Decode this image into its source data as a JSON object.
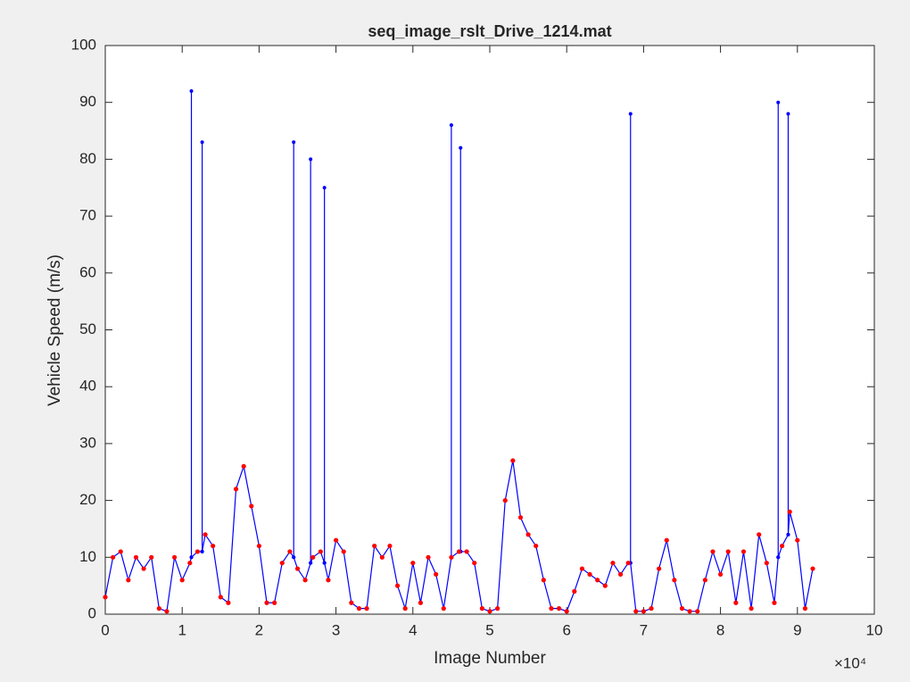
{
  "chart_data": {
    "type": "line",
    "title": "seq_image_rslt_Drive_1214.mat",
    "x_label": "Image Number",
    "y_label": "Vehicle Speed (m/s)",
    "x_exponent_label": "×10⁴",
    "xlim": [
      0,
      10
    ],
    "xticks": [
      0,
      1,
      2,
      3,
      4,
      5,
      6,
      7,
      8,
      9,
      10
    ],
    "ylim": [
      0,
      100
    ],
    "yticks": [
      0,
      10,
      20,
      30,
      40,
      50,
      60,
      70,
      80,
      90,
      100
    ],
    "series": [
      {
        "color": "#0000ff",
        "x": [
          0,
          0.1,
          0.2,
          0.3,
          0.4,
          0.5,
          0.6,
          0.7,
          0.8,
          0.9,
          1.0,
          1.1,
          1.12,
          1.12,
          1.12,
          1.2,
          1.26,
          1.26,
          1.26,
          1.3,
          1.4,
          1.5,
          1.6,
          1.7,
          1.8,
          1.9,
          2.0,
          2.1,
          2.2,
          2.3,
          2.4,
          2.45,
          2.45,
          2.45,
          2.5,
          2.6,
          2.67,
          2.67,
          2.67,
          2.7,
          2.8,
          2.85,
          2.85,
          2.85,
          2.9,
          3.0,
          3.1,
          3.2,
          3.3,
          3.4,
          3.5,
          3.6,
          3.7,
          3.8,
          3.9,
          4.0,
          4.1,
          4.2,
          4.3,
          4.4,
          4.5,
          4.5,
          4.5,
          4.6,
          4.62,
          4.62,
          4.62,
          4.7,
          4.8,
          4.9,
          5.0,
          5.1,
          5.2,
          5.3,
          5.4,
          5.5,
          5.6,
          5.7,
          5.8,
          5.9,
          6.0,
          6.1,
          6.2,
          6.3,
          6.4,
          6.5,
          6.6,
          6.7,
          6.8,
          6.83,
          6.83,
          6.83,
          6.9,
          7.0,
          7.1,
          7.2,
          7.3,
          7.4,
          7.5,
          7.6,
          7.7,
          7.8,
          7.9,
          8.0,
          8.1,
          8.2,
          8.3,
          8.4,
          8.5,
          8.6,
          8.7,
          8.75,
          8.75,
          8.75,
          8.8,
          8.88,
          8.88,
          8.88,
          8.9,
          9.0,
          9.1,
          9.2
        ],
        "values": [
          3,
          10,
          11,
          6,
          10,
          8,
          10,
          1,
          0.5,
          10,
          6,
          9,
          10,
          92,
          10,
          11,
          11,
          83,
          11,
          14,
          12,
          3,
          2,
          22,
          26,
          19,
          12,
          2,
          2,
          9,
          11,
          10,
          83,
          10,
          8,
          6,
          9,
          80,
          9,
          10,
          11,
          9,
          75,
          9,
          6,
          13,
          11,
          2,
          1,
          1,
          12,
          10,
          12,
          5,
          1,
          9,
          2,
          10,
          7,
          1,
          10,
          86,
          10,
          11,
          11,
          82,
          11,
          11,
          9,
          1,
          0.5,
          1,
          20,
          27,
          17,
          14,
          12,
          6,
          1,
          1,
          0.5,
          4,
          8,
          7,
          6,
          5,
          9,
          7,
          9,
          9,
          88,
          9,
          0.5,
          0.5,
          1,
          8,
          13,
          6,
          1,
          0.5,
          0.5,
          6,
          11,
          7,
          11,
          2,
          11,
          1,
          14,
          9,
          2,
          10,
          90,
          10,
          12,
          14,
          88,
          14,
          18,
          13,
          1,
          8
        ]
      },
      {
        "color": "#ff0000",
        "x": [
          0,
          0.1,
          0.2,
          0.3,
          0.4,
          0.5,
          0.6,
          0.7,
          0.8,
          0.9,
          1.0,
          1.1,
          1.2,
          1.3,
          1.4,
          1.5,
          1.6,
          1.7,
          1.8,
          1.9,
          2.0,
          2.1,
          2.2,
          2.3,
          2.4,
          2.5,
          2.6,
          2.7,
          2.8,
          2.9,
          3.0,
          3.1,
          3.2,
          3.3,
          3.4,
          3.5,
          3.6,
          3.7,
          3.8,
          3.9,
          4.0,
          4.1,
          4.2,
          4.3,
          4.4,
          4.5,
          4.6,
          4.7,
          4.8,
          4.9,
          5.0,
          5.1,
          5.2,
          5.3,
          5.4,
          5.5,
          5.6,
          5.7,
          5.8,
          5.9,
          6.0,
          6.1,
          6.2,
          6.3,
          6.4,
          6.5,
          6.6,
          6.7,
          6.8,
          6.9,
          7.0,
          7.1,
          7.2,
          7.3,
          7.4,
          7.5,
          7.6,
          7.7,
          7.8,
          7.9,
          8.0,
          8.1,
          8.2,
          8.3,
          8.4,
          8.5,
          8.6,
          8.7,
          8.8,
          8.9,
          9.0,
          9.1,
          9.2
        ],
        "values": [
          3,
          10,
          11,
          6,
          10,
          8,
          10,
          1,
          0.5,
          10,
          6,
          9,
          11,
          14,
          12,
          3,
          2,
          22,
          26,
          19,
          12,
          2,
          2,
          9,
          11,
          8,
          6,
          10,
          11,
          6,
          13,
          11,
          2,
          1,
          1,
          12,
          10,
          12,
          5,
          1,
          9,
          2,
          10,
          7,
          1,
          10,
          11,
          11,
          9,
          1,
          0.5,
          1,
          20,
          27,
          17,
          14,
          12,
          6,
          1,
          1,
          0.5,
          4,
          8,
          7,
          6,
          5,
          9,
          7,
          9,
          0.5,
          0.5,
          1,
          8,
          13,
          6,
          1,
          0.5,
          0.5,
          6,
          11,
          7,
          11,
          2,
          11,
          1,
          14,
          9,
          2,
          12,
          18,
          13,
          1,
          8
        ]
      }
    ]
  }
}
